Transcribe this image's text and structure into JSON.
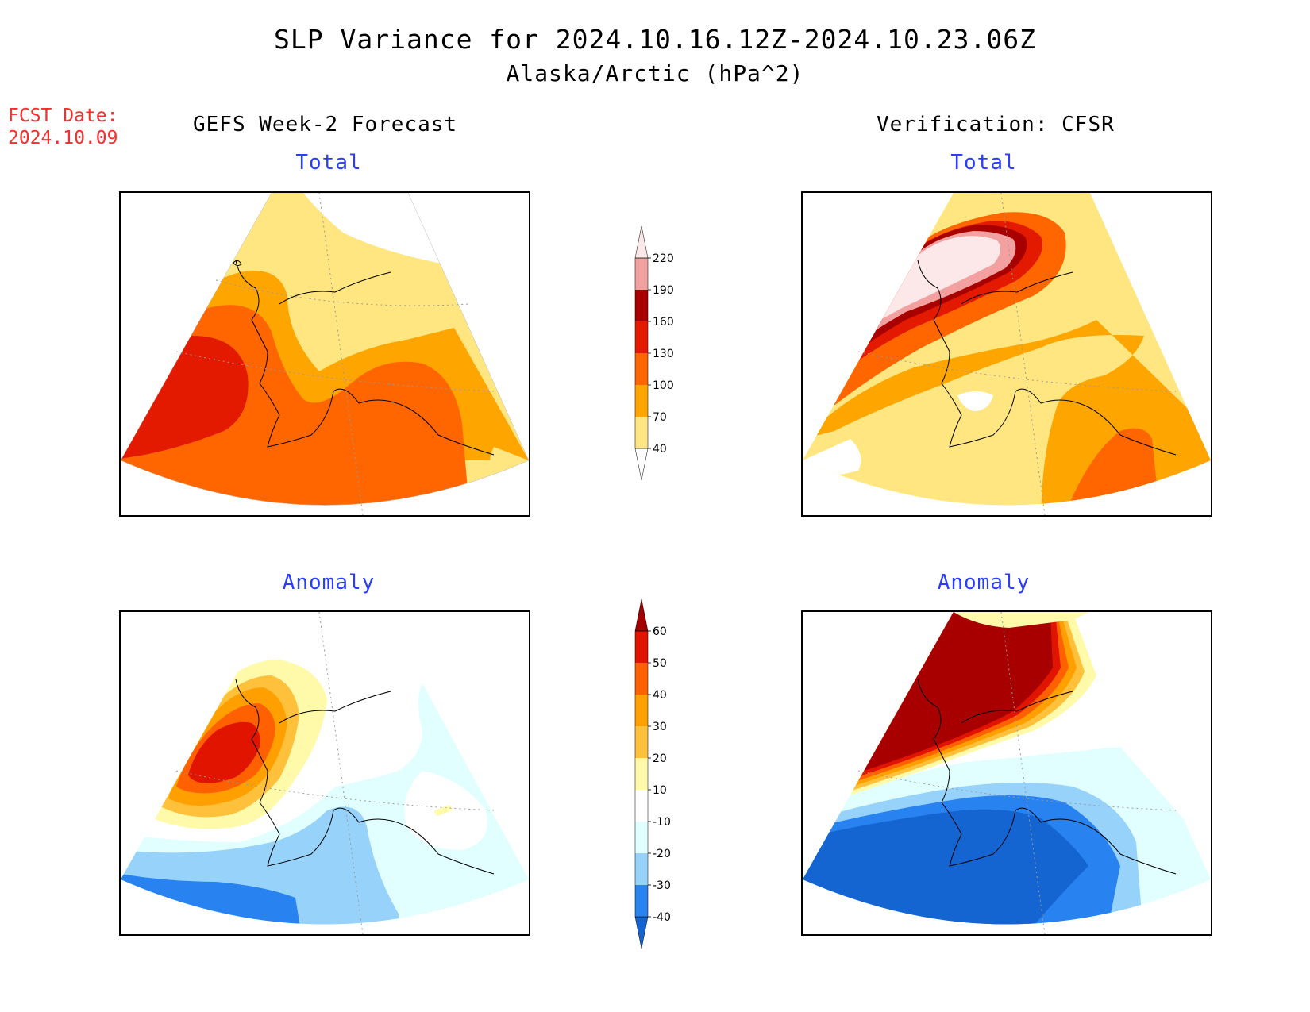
{
  "header": {
    "title": "SLP Variance for 2024.10.16.12Z-2024.10.23.06Z",
    "subtitle": "Alaska/Arctic (hPa^2)",
    "fcst_date_label": "FCST Date:",
    "fcst_date_value": "2024.10.09"
  },
  "columns": {
    "left_title": "GEFS Week-2 Forecast",
    "right_title": "Verification: CFSR"
  },
  "panels": {
    "forecast_total_label": "Total",
    "verif_total_label": "Total",
    "forecast_anomaly_label": "Anomaly",
    "verif_anomaly_label": "Anomaly"
  },
  "colorbars": {
    "total": {
      "ticks": [
        "40",
        "70",
        "100",
        "130",
        "160",
        "190",
        "220"
      ],
      "colors": [
        "#ffffff",
        "#ffe680",
        "#ffa500",
        "#ff6600",
        "#e31a00",
        "#a80000",
        "#f2a0a0",
        "#fce8e8"
      ]
    },
    "anomaly": {
      "ticks": [
        "-40",
        "-30",
        "-20",
        "-10",
        "10",
        "20",
        "30",
        "40",
        "50",
        "60"
      ],
      "colors": [
        "#1464d2",
        "#2882f0",
        "#96d2fa",
        "#e1ffff",
        "#ffffff",
        "#fffaaa",
        "#ffc03c",
        "#ffa000",
        "#ff6000",
        "#e11400",
        "#a50000"
      ]
    }
  },
  "palette": {
    "yellow": "#ffe680",
    "orange": "#ffa500",
    "dark_orange": "#ff6600",
    "red": "#e31a00",
    "dark_red": "#a80000",
    "pink": "#f2a0a0",
    "light_pink": "#fce8e8",
    "light_cyan": "#e1ffff",
    "light_blue": "#96d2fa",
    "mid_blue": "#2882f0",
    "dark_blue": "#1464d2",
    "light_yellow": "#fffaaa",
    "light_orange": "#ffc03c"
  }
}
